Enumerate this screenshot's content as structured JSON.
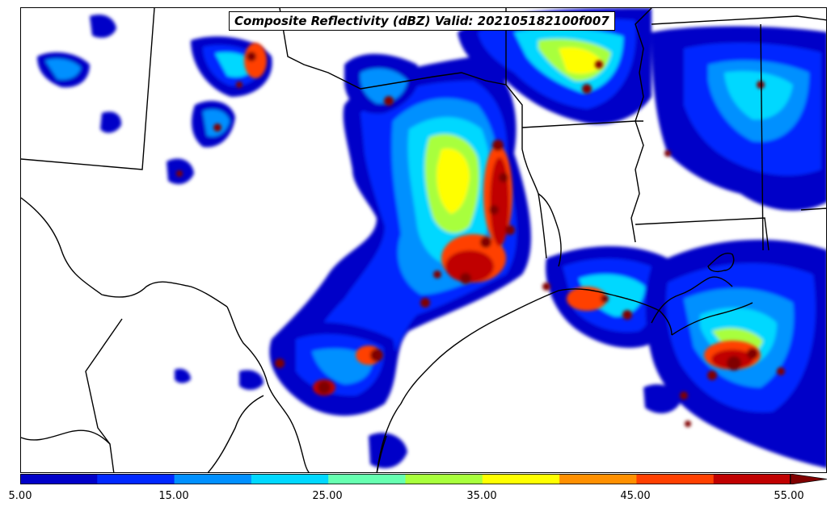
{
  "title": "Composite Reflectivity (dBZ) Valid: 202105182100f007",
  "colorbar": {
    "tick_labels": [
      "5.00",
      "15.00",
      "25.00",
      "35.00",
      "45.00",
      "55.00"
    ],
    "colors": [
      "#0000c8",
      "#0028ff",
      "#0090ff",
      "#00d8ff",
      "#66ffb0",
      "#a8ff3c",
      "#ffff00",
      "#ff9000",
      "#ff4000",
      "#c00000",
      "#800000"
    ],
    "extend": "max"
  }
}
